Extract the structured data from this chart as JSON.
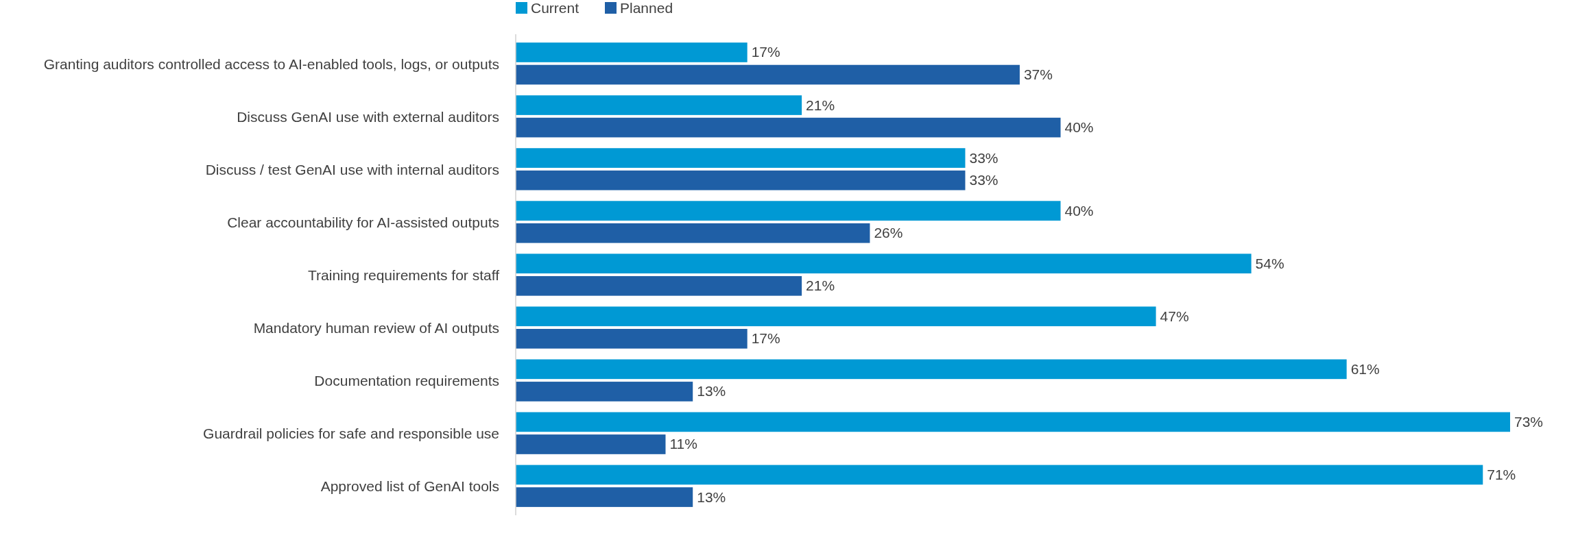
{
  "chart_data": {
    "type": "bar",
    "orientation": "horizontal",
    "categories": [
      "Granting auditors controlled access to AI-enabled tools, logs, or outputs",
      "Discuss GenAI use with external auditors",
      "Discuss / test GenAI use with internal auditors",
      "Clear accountability for AI-assisted outputs",
      "Training requirements for staff",
      "Mandatory human review of AI outputs",
      "Documentation requirements",
      "Guardrail policies for safe and responsible use",
      "Approved list of GenAI tools"
    ],
    "series": [
      {
        "name": "Current",
        "color": "#0099d4",
        "values": [
          17,
          21,
          33,
          40,
          54,
          47,
          61,
          73,
          71
        ],
        "value_labels": [
          "17%",
          "21%",
          "33%",
          "40%",
          "54%",
          "47%",
          "61%",
          "73%",
          "71%"
        ]
      },
      {
        "name": "Planned",
        "color": "#1f5fa6",
        "values": [
          37,
          40,
          33,
          26,
          21,
          17,
          13,
          11,
          13
        ],
        "value_labels": [
          "37%",
          "40%",
          "33%",
          "26%",
          "21%",
          "17%",
          "13%",
          "11%",
          "13%"
        ]
      }
    ],
    "legend": "top"
  }
}
